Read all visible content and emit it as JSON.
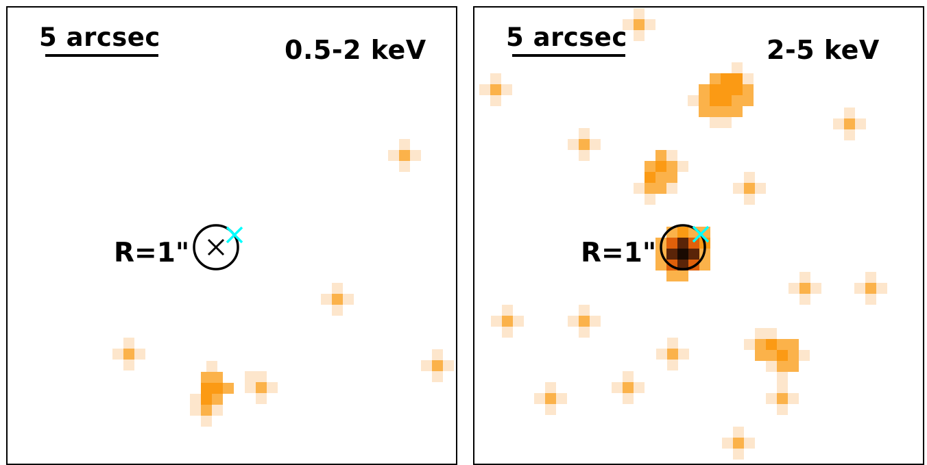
{
  "panels": [
    {
      "band_label": "0.5-2 keV",
      "scale_label": "5 arcsec",
      "radius_label": "R=1\""
    },
    {
      "band_label": "2-5 keV",
      "scale_label": "5 arcsec",
      "radius_label": "R=1\""
    }
  ],
  "colors": {
    "pixel_light": "#fde6cc",
    "pixel_mid": "#fbb24a",
    "pixel_strong": "#fb9a14",
    "pixel_dark": "#e0600a",
    "pixel_deep": "#5a2408",
    "marker_cyan": "#00ffff",
    "circle": "#000000"
  },
  "icons": {
    "source_circle": "circle-outline",
    "center_marker": "x-mark",
    "counterpart_marker": "cyan-x-mark"
  }
}
